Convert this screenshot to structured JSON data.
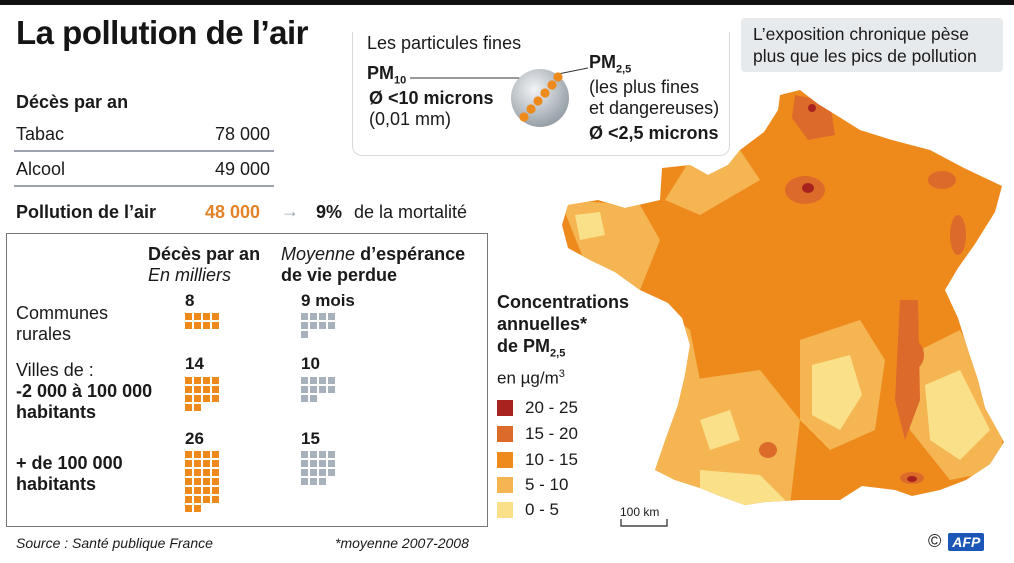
{
  "title": "La pollution de l’air",
  "deaths_per_year": {
    "heading": "Décès par an",
    "rows": [
      {
        "label": "Tabac",
        "value": "78 000"
      },
      {
        "label": "Alcool",
        "value": "49 000"
      }
    ],
    "pollution": {
      "label": "Pollution de l’air",
      "value": "48 000",
      "arrow": "→",
      "pct": "9%",
      "pct_text": "de la mortalité"
    }
  },
  "table": {
    "col1_head": "Décès par an",
    "col1_sub": "En milliers",
    "col2_head_italic": "Moyenne",
    "col2_head_rest": "d’espérance",
    "col2_head_line2": "de vie perdue",
    "rows": [
      {
        "label_lines": [
          "Communes",
          "rurales"
        ],
        "deaths": "8",
        "deaths_squares": 8,
        "months": "9",
        "months_suffix": "mois",
        "months_squares": 9
      },
      {
        "label_lines": [
          "Villes de :",
          "-2 000 à 100 000",
          "habitants"
        ],
        "deaths": "14",
        "deaths_squares": 14,
        "months": "10",
        "months_suffix": "",
        "months_squares": 10
      },
      {
        "label_lines": [
          "+ de 100 000",
          "habitants"
        ],
        "deaths": "26",
        "deaths_squares": 26,
        "months": "15",
        "months_suffix": "",
        "months_squares": 15
      }
    ]
  },
  "source": "Source : Santé publique France",
  "footnote": "*moyenne 2007-2008",
  "particles": {
    "heading": "Les particules fines",
    "pm10_main": "PM",
    "pm10_sub": "10",
    "pm10_size": "Ø <10 microns",
    "pm10_mm": "(0,01 mm)",
    "pm25_main": "PM",
    "pm25_sub": "2,5",
    "pm25_desc1": "(les plus fines",
    "pm25_desc2": "et dangereuses)",
    "pm25_size": "Ø <2,5 microns"
  },
  "exposure_note": {
    "line1": "L’exposition chronique pèse",
    "line2": "plus que les pics de pollution"
  },
  "legend": {
    "title_line1": "Concentrations",
    "title_line2": "annuelles*",
    "title_line3_main": "de PM",
    "title_line3_sub": "2,5",
    "unit_main": "en µg/m",
    "unit_sup": "3",
    "items": [
      {
        "label": "20 - 25",
        "color": "#a8231f"
      },
      {
        "label": "15 - 20",
        "color": "#dc6a2a"
      },
      {
        "label": "10 - 15",
        "color": "#ee8a1c"
      },
      {
        "label": "5 - 10",
        "color": "#f4b552"
      },
      {
        "label": "0 - 5",
        "color": "#fbe08a"
      }
    ]
  },
  "map": {
    "scale_label": "100 km",
    "colors": {
      "c20_25": "#a8231f",
      "c15_20": "#dc6a2a",
      "c10_15": "#ee8a1c",
      "c5_10": "#f4b552",
      "c0_5": "#fbe08a"
    }
  },
  "credit": {
    "symbol": "©",
    "brand": "AFP"
  }
}
